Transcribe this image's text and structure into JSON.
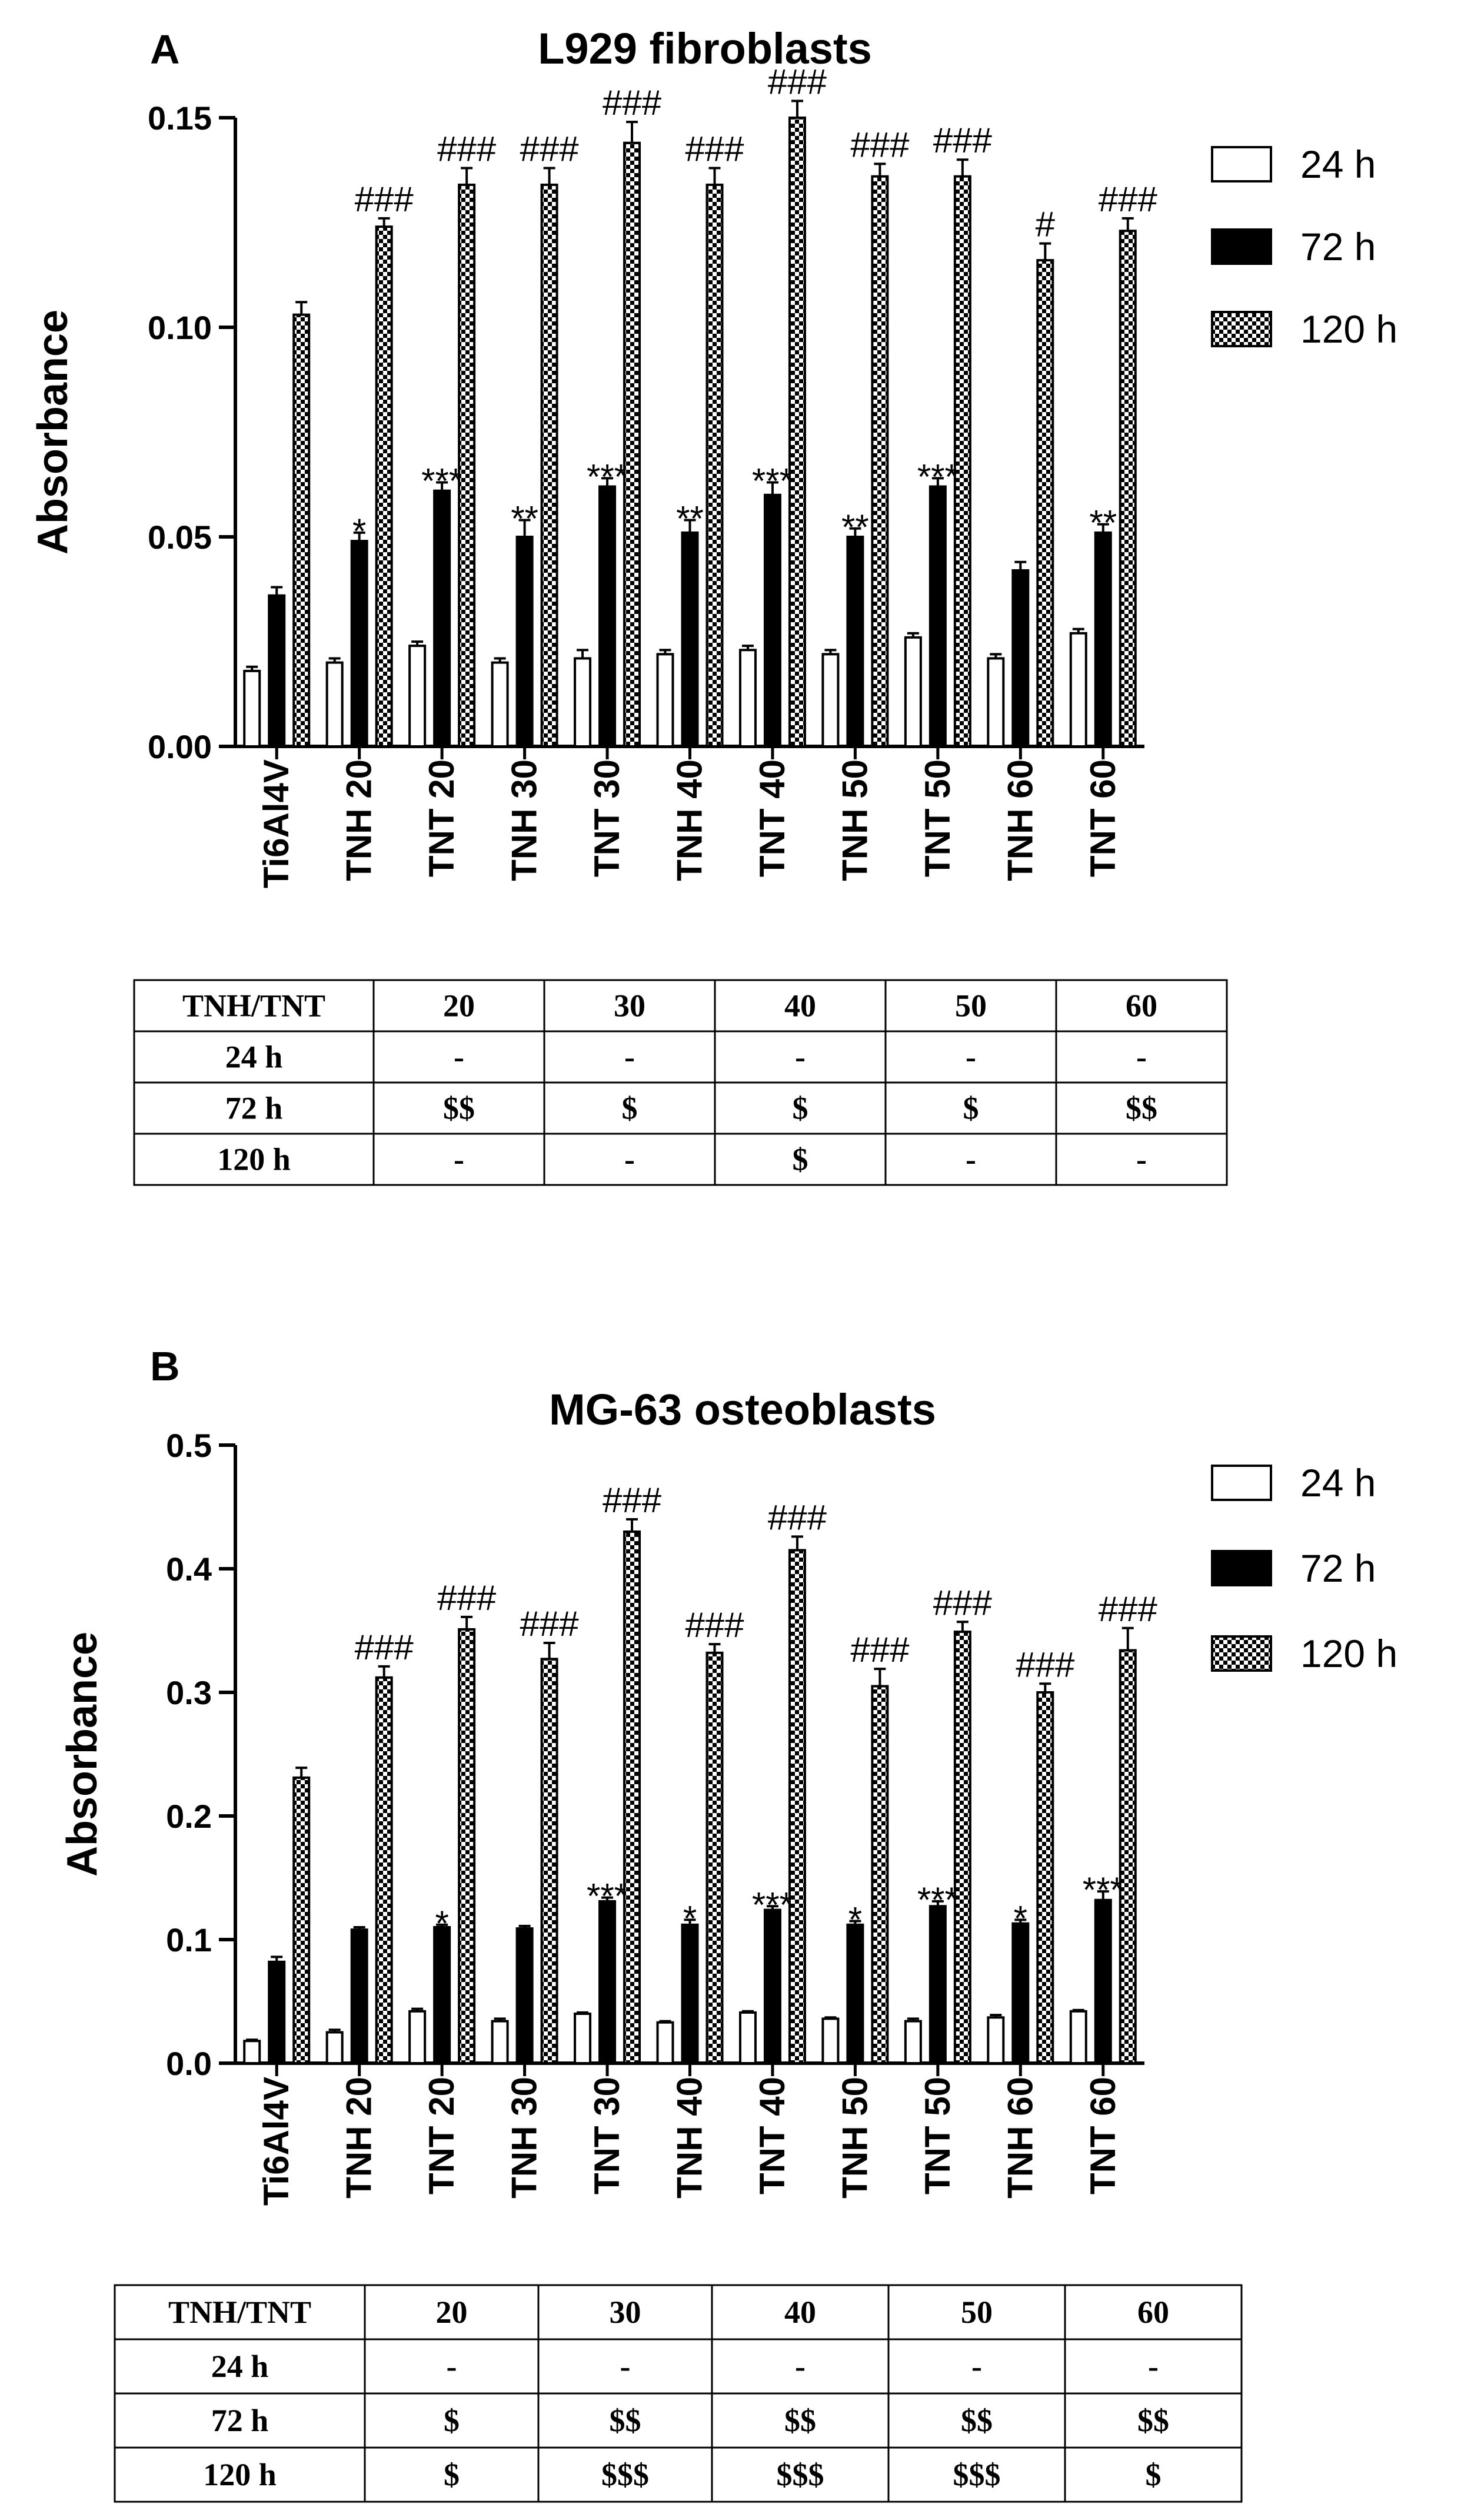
{
  "chart_data": [
    {
      "type": "bar",
      "panel": "A",
      "title": "L929 fibroblasts",
      "ylabel": "Absorbance",
      "xlabel": "",
      "ylim": [
        0,
        0.15
      ],
      "yticks": [
        "0.00",
        "0.05",
        "0.10",
        "0.15"
      ],
      "categories": [
        "Ti6Al4V",
        "TNH 20",
        "TNT 20",
        "TNH 30",
        "TNT 30",
        "TNH 40",
        "TNT 40",
        "TNH 50",
        "TNT 50",
        "TNH 60",
        "TNT 60"
      ],
      "series": [
        {
          "name": "24 h",
          "values": [
            0.018,
            0.02,
            0.024,
            0.02,
            0.021,
            0.022,
            0.023,
            0.022,
            0.026,
            0.021,
            0.027
          ],
          "errors": [
            0.001,
            0.001,
            0.001,
            0.001,
            0.002,
            0.001,
            0.001,
            0.001,
            0.001,
            0.001,
            0.001
          ]
        },
        {
          "name": "72 h",
          "values": [
            0.036,
            0.049,
            0.061,
            0.05,
            0.062,
            0.051,
            0.06,
            0.05,
            0.062,
            0.042,
            0.051
          ],
          "errors": [
            0.002,
            0.002,
            0.002,
            0.004,
            0.002,
            0.003,
            0.003,
            0.002,
            0.002,
            0.002,
            0.002
          ]
        },
        {
          "name": "120 h",
          "values": [
            0.103,
            0.124,
            0.134,
            0.134,
            0.144,
            0.134,
            0.15,
            0.136,
            0.136,
            0.116,
            0.123
          ],
          "errors": [
            0.003,
            0.002,
            0.004,
            0.004,
            0.005,
            0.004,
            0.004,
            0.003,
            0.004,
            0.004,
            0.003
          ]
        }
      ],
      "annotations_72h": [
        "",
        "*",
        "***",
        "**",
        "***",
        "**",
        "***",
        "**",
        "***",
        "",
        "**"
      ],
      "annotations_120h": [
        "",
        "###",
        "###",
        "###",
        "###",
        "###",
        "###",
        "###",
        "###",
        "#",
        "###"
      ],
      "legend": [
        "24 h",
        "72 h",
        "120 h"
      ],
      "table": {
        "headers": [
          "TNH/TNT",
          "20",
          "30",
          "40",
          "50",
          "60"
        ],
        "rows": [
          [
            "24 h",
            "-",
            "-",
            "-",
            "-",
            "-"
          ],
          [
            "72 h",
            "$$",
            "$",
            "$",
            "$",
            "$$"
          ],
          [
            "120 h",
            "-",
            "-",
            "$",
            "-",
            "-"
          ]
        ]
      }
    },
    {
      "type": "bar",
      "panel": "B",
      "title": "MG-63 osteoblasts",
      "ylabel": "Absorbance",
      "xlabel": "",
      "ylim": [
        0,
        0.5
      ],
      "yticks": [
        "0.0",
        "0.1",
        "0.2",
        "0.3",
        "0.4",
        "0.5"
      ],
      "categories": [
        "Ti6Al4V",
        "TNH 20",
        "TNT 20",
        "TNH 30",
        "TNT 30",
        "TNH 40",
        "TNT 40",
        "TNH 50",
        "TNT 50",
        "TNH 60",
        "TNT 60"
      ],
      "series": [
        {
          "name": "24 h",
          "values": [
            0.018,
            0.025,
            0.042,
            0.034,
            0.04,
            0.033,
            0.041,
            0.036,
            0.034,
            0.037,
            0.042
          ],
          "errors": [
            0.001,
            0.002,
            0.002,
            0.002,
            0.001,
            0.001,
            0.001,
            0.001,
            0.002,
            0.002,
            0.001
          ]
        },
        {
          "name": "72 h",
          "values": [
            0.082,
            0.108,
            0.11,
            0.109,
            0.131,
            0.112,
            0.124,
            0.112,
            0.127,
            0.113,
            0.132
          ],
          "errors": [
            0.004,
            0.002,
            0.002,
            0.002,
            0.003,
            0.004,
            0.003,
            0.003,
            0.004,
            0.003,
            0.007
          ]
        },
        {
          "name": "120 h",
          "values": [
            0.231,
            0.312,
            0.351,
            0.327,
            0.43,
            0.332,
            0.415,
            0.305,
            0.349,
            0.3,
            0.334
          ],
          "errors": [
            0.008,
            0.009,
            0.01,
            0.013,
            0.01,
            0.007,
            0.011,
            0.014,
            0.008,
            0.007,
            0.018
          ]
        }
      ],
      "annotations_72h": [
        "",
        "",
        "*",
        "",
        "***",
        "*",
        "***",
        "*",
        "***",
        "*",
        "***"
      ],
      "annotations_120h": [
        "",
        "###",
        "###",
        "###",
        "###",
        "###",
        "###",
        "###",
        "###",
        "###",
        "###"
      ],
      "legend": [
        "24 h",
        "72 h",
        "120 h"
      ],
      "table": {
        "headers": [
          "TNH/TNT",
          "20",
          "30",
          "40",
          "50",
          "60"
        ],
        "rows": [
          [
            "24 h",
            "-",
            "-",
            "-",
            "-",
            "-"
          ],
          [
            "72 h",
            "$",
            "$$",
            "$$",
            "$$",
            "$$"
          ],
          [
            "120 h",
            "$",
            "$$$",
            "$$$",
            "$$$",
            "$"
          ]
        ]
      }
    }
  ]
}
